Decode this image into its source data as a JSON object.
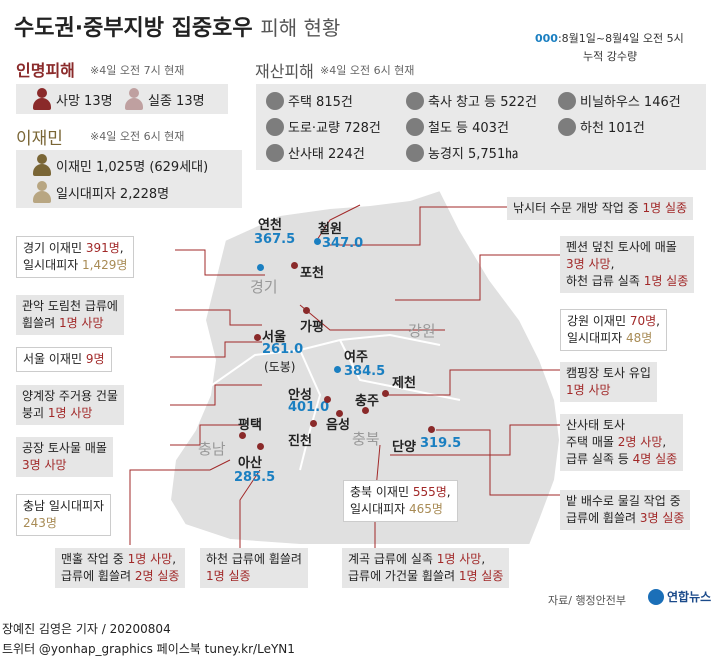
{
  "title": {
    "main": "수도권·중부지방 집중호우",
    "sub": "피해 현황"
  },
  "legend": {
    "marker": "000",
    "line1": ":8월1일~8월4일 오전 5시",
    "line2": "누적 강수량"
  },
  "casualties": {
    "title": "인명피해",
    "note": "※4일 오전 7시 현재",
    "deaths": "사망 13명",
    "missing": "실종 13명"
  },
  "evacuees": {
    "title": "이재민",
    "note": "※4일 오전 6시 현재",
    "evacuees": "이재민 1,025명 (629세대)",
    "temp": "일시대피자 2,228명"
  },
  "property": {
    "title": "재산피해",
    "note": "※4일 오전 6시 현재",
    "items": [
      {
        "label": "주택 815건",
        "icon": "house-icon"
      },
      {
        "label": "축사 창고 등 522건",
        "icon": "barn-icon"
      },
      {
        "label": "비닐하우스 146건",
        "icon": "greenhouse-icon"
      },
      {
        "label": "도로·교량 728건",
        "icon": "road-icon"
      },
      {
        "label": "철도 등 403건",
        "icon": "railway-icon"
      },
      {
        "label": "하천 101건",
        "icon": "river-icon"
      },
      {
        "label": "산사태 224건",
        "icon": "landslide-icon"
      },
      {
        "label": "농경지 5,751㏊",
        "icon": "farmland-icon"
      }
    ]
  },
  "map": {
    "regions": {
      "gyeonggi": "경기",
      "gangwon": "강원",
      "chungbuk": "충북",
      "chungnam": "충남"
    },
    "cities": {
      "yeoncheon": {
        "name": "연천",
        "rain": "367.5"
      },
      "cheorwon": {
        "name": "철원",
        "rain": "347.0"
      },
      "pocheon": {
        "name": "포천"
      },
      "gapyeong": {
        "name": "가평"
      },
      "seoul": {
        "name": "서울",
        "rain": "261.0",
        "note": "(도봉)"
      },
      "yeoju": {
        "name": "여주",
        "rain": "384.5"
      },
      "jecheon": {
        "name": "제천"
      },
      "chungju": {
        "name": "충주"
      },
      "anseong": {
        "name": "안성",
        "rain": "401.0"
      },
      "pyeongtaek": {
        "name": "평택"
      },
      "eumseong": {
        "name": "음성"
      },
      "jincheon": {
        "name": "진천"
      },
      "danyang": {
        "name": "단양",
        "rain": "319.5"
      },
      "asan": {
        "name": "아산",
        "rain": "285.5"
      }
    }
  },
  "callouts": {
    "nakshi": [
      "낚시터 수문 개방 작업 중 ",
      "1명 실종"
    ],
    "gg_evac": [
      "경기 이재민 ",
      "391명",
      ",",
      "일시대피자 ",
      "1,429명"
    ],
    "pension": [
      "펜션 덮친 토사에 매몰",
      "3명 사망",
      ",",
      "하천 급류 실족 ",
      "1명 실종"
    ],
    "gwanak": [
      "관악 도림천 급류에",
      "휩쓸려 ",
      "1명 사망"
    ],
    "gw_evac": [
      "강원 이재민 ",
      "70명",
      ",",
      "일시대피자 ",
      "48명"
    ],
    "seoul_evac": [
      "서울 이재민 ",
      "9명"
    ],
    "camping": [
      "캠핑장 토사 유입",
      "1명 사망"
    ],
    "yanggye": [
      "양계장 주거용 건물",
      "붕괴 ",
      "1명 사망"
    ],
    "landslide": [
      "산사태 토사",
      "주택 매몰 ",
      "2명 사망",
      ",",
      "급류 실족 등 ",
      "4명 실종"
    ],
    "factory": [
      "공장 토사물 매몰",
      "3명 사망"
    ],
    "cb_evac": [
      "충북 이재민 ",
      "555명",
      ",",
      "일시대피자 ",
      "465명"
    ],
    "cn_evac": [
      "충남 일시대피자",
      "243명"
    ],
    "field": [
      "밭 배수로 물길 작업 중",
      "급류에 휩쓸려 ",
      "3명 실종"
    ],
    "manhole": [
      "맨홀 작업 중 ",
      "1명 사망",
      ",",
      "급류에 휩쓸려 ",
      "2명 실종"
    ],
    "stream": [
      "하천 급류에 휩쓸려",
      "1명 실종"
    ],
    "valley": [
      "계곡 급류에 실족 ",
      "1명 사망",
      ",",
      "급류에 가건물 휩쓸려 ",
      "1명 실종"
    ]
  },
  "source": "자료/ 행정안전부",
  "logo": "연합뉴스",
  "footer": {
    "line1": "장예진 김영은 기자 / 20200804",
    "line2": "트위터 @yonhap_graphics  페이스북 tuney.kr/LeYN1"
  },
  "colors": {
    "red": "#a12828",
    "blue": "#1a7fc1",
    "tan": "#a88b55",
    "map": "#e0e0e0"
  }
}
